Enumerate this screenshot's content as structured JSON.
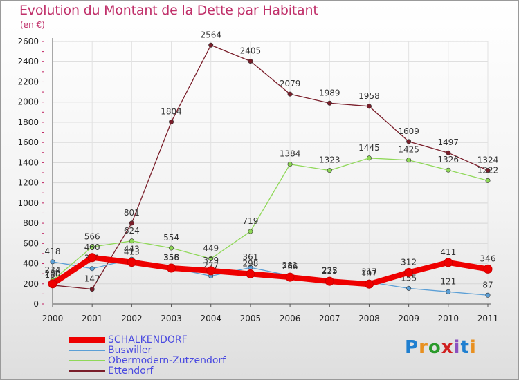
{
  "title": "Evolution du Montant de la Dette par Habitant",
  "unit": "(en €)",
  "logo": [
    "P",
    "r",
    "o",
    "x",
    "i",
    "t",
    "i"
  ],
  "logo_colors": [
    "#1f7fd0",
    "#e89020",
    "#2a9a2a",
    "#d02020",
    "#8a50c0",
    "#1f7fd0",
    "#e89020"
  ],
  "chart_data": {
    "type": "line",
    "x": [
      "2000",
      "2001",
      "2002",
      "2003",
      "2004",
      "2005",
      "2006",
      "2007",
      "2008",
      "2009",
      "2010",
      "2011"
    ],
    "ylim": [
      0,
      2600
    ],
    "yticks": [
      "0",
      "200",
      "400",
      "600",
      "800",
      "1000",
      "1200",
      "1400",
      "1600",
      "1800",
      "2000",
      "2200",
      "2400",
      "2600"
    ],
    "grid": true,
    "legend_position": "bottom",
    "series": [
      {
        "name": "Ettendorf",
        "color": "#7a1e2a",
        "values": [
          186,
          147,
          801,
          1804,
          2564,
          2405,
          2079,
          1989,
          1958,
          1609,
          1497,
          1324
        ],
        "labels": [
          "186",
          "147",
          "801",
          "1804",
          "2564",
          "2405",
          "2079",
          "1989",
          "1958",
          "1609",
          "1497",
          "1324"
        ]
      },
      {
        "name": "Obermodern-Zutzendorf",
        "color": "#8fd858",
        "values": [
          234,
          566,
          624,
          554,
          449,
          719,
          1384,
          1323,
          1445,
          1425,
          1326,
          1222
        ],
        "labels": [
          "234",
          "566",
          "624",
          "554",
          "449",
          "719",
          "1384",
          "1323",
          "1445",
          "1425",
          "1326",
          "1222"
        ]
      },
      {
        "name": "Buswiller",
        "color": "#5b9fd6",
        "values": [
          418,
          351,
          443,
          358,
          277,
          361,
          281,
          232,
          217,
          155,
          121,
          87
        ],
        "labels": [
          "418",
          "351",
          "443",
          "358",
          "277",
          "361",
          "281",
          "232",
          "217",
          "155",
          "121",
          "87"
        ]
      },
      {
        "name": "SCHALKENDORF",
        "color": "#ee0000",
        "values": [
          200,
          460,
          413,
          356,
          329,
          298,
          266,
          225,
          197,
          312,
          411,
          346
        ],
        "labels": [
          "200",
          "460",
          "413",
          "356",
          "329",
          "298",
          "266",
          "225",
          "197",
          "312",
          "411",
          "346"
        ]
      }
    ]
  }
}
